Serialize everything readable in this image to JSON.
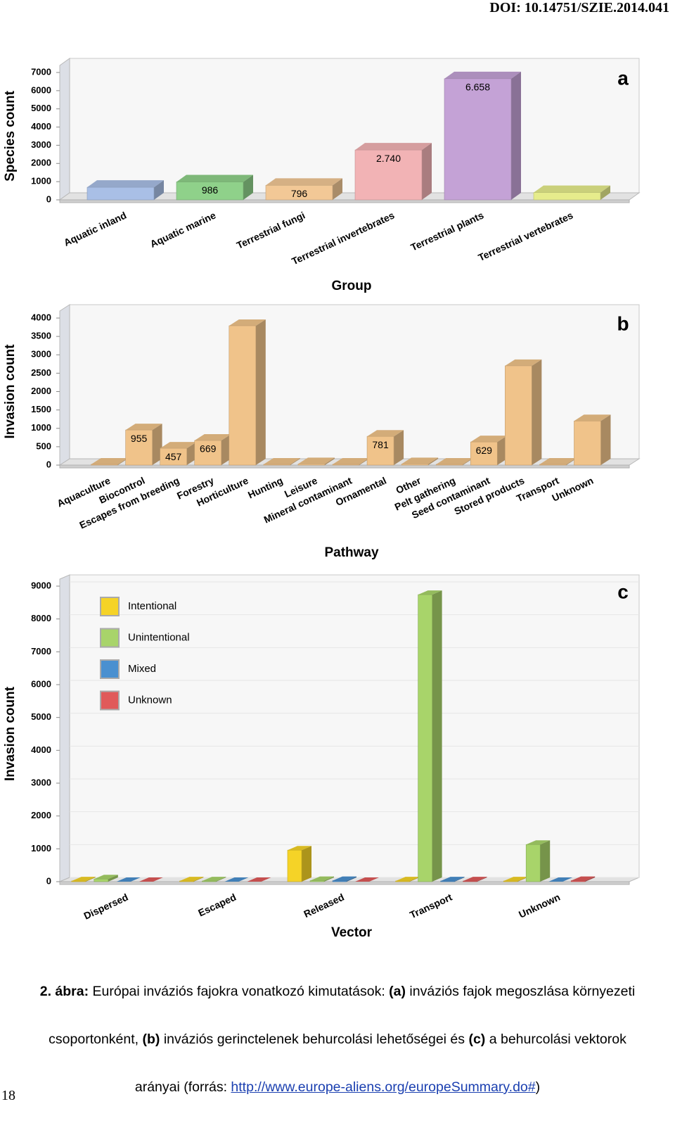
{
  "header": "DOI: 10.14751/SZIE.2014.041",
  "page_number": "18",
  "caption": {
    "lines": [
      [
        "2. ábra:",
        " Európai inváziós fajokra vonatkozó kimutatások: ",
        "(a)",
        " inváziós fajok megoszlása környezeti"
      ],
      [
        "csoportonként, ",
        "(b)",
        " inváziós gerinctelenek behurcolási lehetőségei és ",
        "(c)",
        " a behurcolási vektorok"
      ],
      [
        "arányai (forrás: ",
        "http://www.europe-aliens.org/europeSummary.do#",
        ")"
      ]
    ]
  },
  "chart_data": [
    {
      "type": "bar",
      "panel": "a",
      "y_label": "Species count",
      "x_label": "Group",
      "categories": [
        "Aquatic inland",
        "Aquatic marine",
        "Terrestrial fungi",
        "Terrestrial invertebrates",
        "Terrestrial plants",
        "Terrestrial vertebrates"
      ],
      "values": [
        690,
        986,
        796,
        2740,
        6658,
        400
      ],
      "value_labels": [
        null,
        "986",
        "796",
        "2.740",
        "6.658",
        null
      ],
      "colors": [
        "#a9bfe6",
        "#8fd18a",
        "#f2c896",
        "#f2b3b5",
        "#c4a2d6",
        "#e6ec8c"
      ],
      "ylim": [
        0,
        7000
      ],
      "yticks": [
        0,
        1000,
        2000,
        3000,
        4000,
        5000,
        6000,
        7000
      ],
      "grid": false
    },
    {
      "type": "bar",
      "panel": "b",
      "y_label": "Invasion count",
      "x_label": "Pathway",
      "categories": [
        "Aquaculture",
        "Biocontrol",
        "Escapes from breeding",
        "Forestry",
        "Horticulture",
        "Hunting",
        "Leisure",
        "Mineral contaminant",
        "Ornamental",
        "Other",
        "Pelt gathering",
        "Seed contaminant",
        "Stored products",
        "Transport",
        "Unknown"
      ],
      "values": [
        20,
        955,
        457,
        669,
        3790,
        20,
        30,
        20,
        781,
        30,
        20,
        629,
        2700,
        20,
        1200
      ],
      "value_labels": [
        null,
        "955",
        "457",
        "669",
        null,
        null,
        null,
        null,
        "781",
        null,
        null,
        "629",
        null,
        null,
        null
      ],
      "color": "#f0c38a",
      "ylim": [
        0,
        4000
      ],
      "yticks": [
        0,
        500,
        1000,
        1500,
        2000,
        2500,
        3000,
        3500,
        4000
      ],
      "grid": false
    },
    {
      "type": "bar",
      "panel": "c",
      "y_label": "Invasion count",
      "x_label": "Vector",
      "categories": [
        "Dispersed",
        "Escaped",
        "Released",
        "Transport",
        "Unknown"
      ],
      "series": [
        {
          "name": "Intentional",
          "color": "#f5d327",
          "values": [
            20,
            20,
            960,
            20,
            20
          ]
        },
        {
          "name": "Unintentional",
          "color": "#a8d46a",
          "values": [
            80,
            20,
            30,
            8740,
            1130
          ]
        },
        {
          "name": "Mixed",
          "color": "#4a90d0",
          "values": [
            0,
            0,
            30,
            20,
            0
          ]
        },
        {
          "name": "Unknown",
          "color": "#e05a5a",
          "values": [
            0,
            0,
            0,
            20,
            30
          ]
        }
      ],
      "legend": "top-left",
      "ylim": [
        0,
        9000
      ],
      "yticks": [
        0,
        1000,
        2000,
        3000,
        4000,
        5000,
        6000,
        7000,
        8000,
        9000
      ],
      "grid": true
    }
  ]
}
